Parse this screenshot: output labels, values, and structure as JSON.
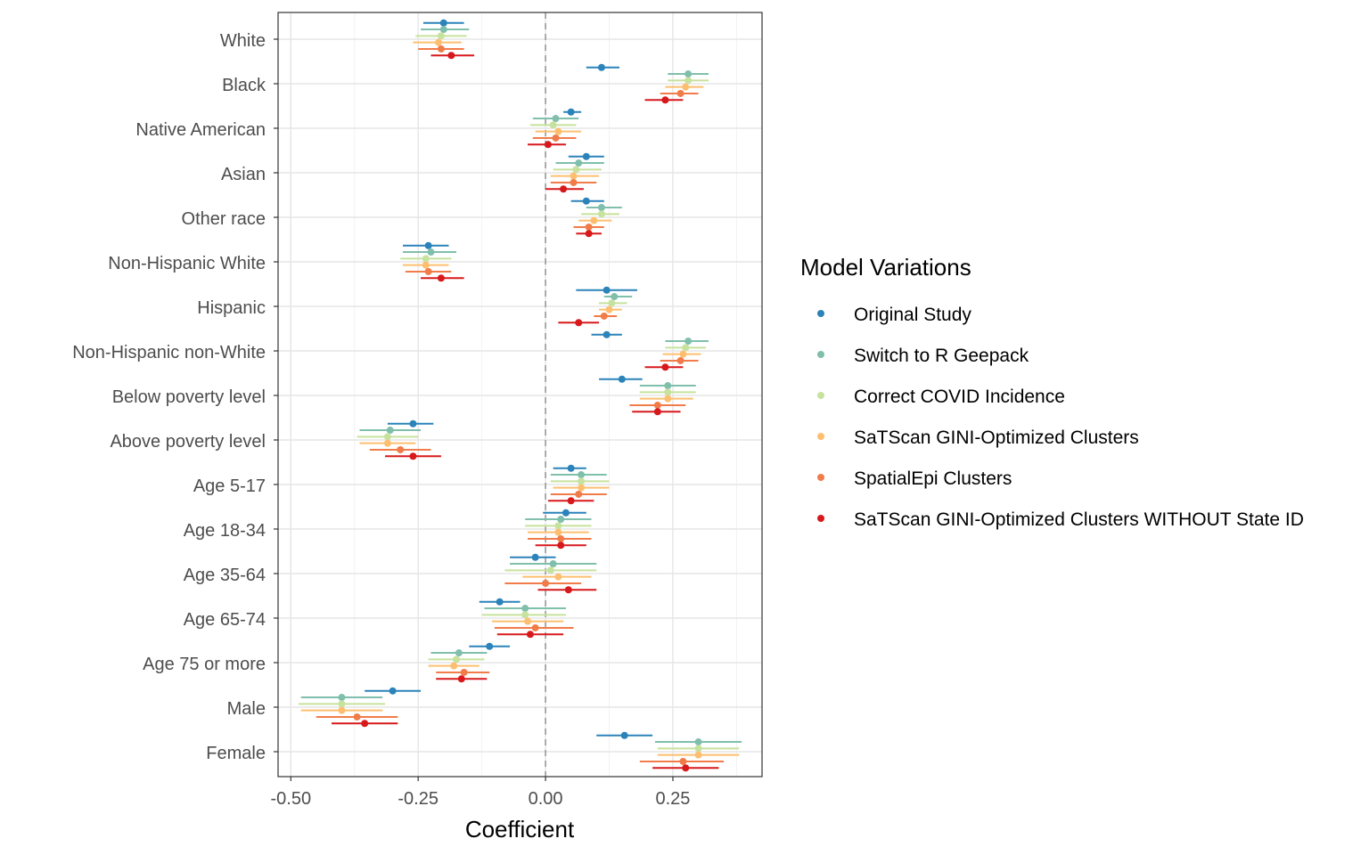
{
  "chart_data": {
    "type": "forest",
    "xlabel": "Coefficient",
    "ylabel": "",
    "xlim": [
      -0.525,
      0.425
    ],
    "xticks": [
      -0.5,
      -0.25,
      0.0,
      0.25
    ],
    "xtick_labels": [
      "-0.50",
      "-0.25",
      "0.00",
      "0.25"
    ],
    "reference_line": 0,
    "grid": true,
    "legend_position": "right",
    "legend_title": "Model Variations",
    "categories": [
      "White",
      "Black",
      "Native American",
      "Asian",
      "Other race",
      "Non-Hispanic White",
      "Hispanic",
      "Non-Hispanic non-White",
      "Below poverty level",
      "Above poverty level",
      "Age 5-17",
      "Age 18-34",
      "Age 35-64",
      "Age 65-74",
      "Age 75 or more",
      "Male",
      "Female"
    ],
    "series": [
      {
        "name": "Original Study",
        "color": "#2b83ba",
        "estimate": [
          -0.2,
          0.11,
          0.05,
          0.08,
          0.08,
          -0.23,
          0.12,
          0.12,
          0.15,
          -0.26,
          0.05,
          0.04,
          -0.02,
          -0.09,
          -0.11,
          -0.3,
          0.155
        ],
        "lower": [
          -0.24,
          0.08,
          0.035,
          0.045,
          0.05,
          -0.28,
          0.06,
          0.09,
          0.105,
          -0.31,
          0.015,
          -0.005,
          -0.07,
          -0.13,
          -0.15,
          -0.355,
          0.1
        ],
        "upper": [
          -0.16,
          0.145,
          0.07,
          0.115,
          0.115,
          -0.19,
          0.18,
          0.15,
          0.19,
          -0.22,
          0.08,
          0.08,
          0.02,
          -0.05,
          -0.07,
          -0.245,
          0.21
        ]
      },
      {
        "name": "Switch to R Geepack",
        "color": "#80bfac",
        "estimate": [
          -0.2,
          0.28,
          0.02,
          0.065,
          0.11,
          -0.225,
          0.135,
          0.28,
          0.24,
          -0.305,
          0.07,
          0.03,
          0.015,
          -0.04,
          -0.17,
          -0.4,
          0.3
        ],
        "lower": [
          -0.245,
          0.24,
          -0.025,
          0.02,
          0.08,
          -0.28,
          0.115,
          0.235,
          0.185,
          -0.365,
          0.01,
          -0.04,
          -0.07,
          -0.12,
          -0.225,
          -0.48,
          0.215
        ],
        "upper": [
          -0.15,
          0.32,
          0.065,
          0.115,
          0.15,
          -0.175,
          0.17,
          0.32,
          0.295,
          -0.245,
          0.12,
          0.09,
          0.1,
          0.04,
          -0.115,
          -0.32,
          0.385
        ]
      },
      {
        "name": "Correct COVID Incidence",
        "color": "#c7e29e",
        "estimate": [
          -0.205,
          0.28,
          0.015,
          0.06,
          0.11,
          -0.235,
          0.13,
          0.275,
          0.24,
          -0.31,
          0.07,
          0.025,
          0.01,
          -0.04,
          -0.175,
          -0.4,
          0.3
        ],
        "lower": [
          -0.255,
          0.24,
          -0.03,
          0.015,
          0.07,
          -0.285,
          0.105,
          0.235,
          0.185,
          -0.37,
          0.01,
          -0.04,
          -0.08,
          -0.125,
          -0.23,
          -0.485,
          0.22
        ],
        "upper": [
          -0.155,
          0.32,
          0.06,
          0.11,
          0.145,
          -0.185,
          0.16,
          0.315,
          0.295,
          -0.25,
          0.125,
          0.09,
          0.1,
          0.04,
          -0.12,
          -0.315,
          0.38
        ]
      },
      {
        "name": "SaTScan GINI-Optimized Clusters",
        "color": "#fdbf6f",
        "estimate": [
          -0.21,
          0.275,
          0.025,
          0.055,
          0.095,
          -0.235,
          0.125,
          0.27,
          0.24,
          -0.31,
          0.07,
          0.025,
          0.025,
          -0.035,
          -0.18,
          -0.4,
          0.3
        ],
        "lower": [
          -0.26,
          0.235,
          -0.02,
          0.01,
          0.065,
          -0.28,
          0.105,
          0.23,
          0.185,
          -0.365,
          0.015,
          -0.035,
          -0.045,
          -0.105,
          -0.23,
          -0.48,
          0.22
        ],
        "upper": [
          -0.165,
          0.31,
          0.07,
          0.105,
          0.13,
          -0.19,
          0.15,
          0.305,
          0.29,
          -0.255,
          0.125,
          0.085,
          0.09,
          0.035,
          -0.13,
          -0.32,
          0.38
        ]
      },
      {
        "name": "SpatialEpi Clusters",
        "color": "#f17c4a",
        "estimate": [
          -0.205,
          0.265,
          0.02,
          0.055,
          0.085,
          -0.23,
          0.115,
          0.265,
          0.22,
          -0.285,
          0.065,
          0.03,
          0.0,
          -0.02,
          -0.16,
          -0.37,
          0.27
        ],
        "lower": [
          -0.25,
          0.225,
          -0.025,
          0.01,
          0.055,
          -0.275,
          0.095,
          0.225,
          0.165,
          -0.345,
          0.01,
          -0.035,
          -0.08,
          -0.1,
          -0.215,
          -0.45,
          0.185
        ],
        "upper": [
          -0.16,
          0.3,
          0.06,
          0.1,
          0.115,
          -0.185,
          0.14,
          0.3,
          0.275,
          -0.225,
          0.12,
          0.09,
          0.07,
          0.055,
          -0.11,
          -0.29,
          0.35
        ]
      },
      {
        "name": "SaTScan GINI-Optimized Clusters WITHOUT State ID",
        "color": "#d7191c",
        "estimate": [
          -0.185,
          0.235,
          0.005,
          0.035,
          0.085,
          -0.205,
          0.065,
          0.235,
          0.22,
          -0.26,
          0.05,
          0.03,
          0.045,
          -0.03,
          -0.165,
          -0.355,
          0.275
        ],
        "lower": [
          -0.225,
          0.195,
          -0.035,
          0.0,
          0.06,
          -0.245,
          0.025,
          0.195,
          0.17,
          -0.315,
          0.005,
          -0.02,
          -0.015,
          -0.095,
          -0.215,
          -0.42,
          0.21
        ],
        "upper": [
          -0.14,
          0.27,
          0.04,
          0.075,
          0.11,
          -0.16,
          0.105,
          0.27,
          0.265,
          -0.205,
          0.095,
          0.08,
          0.1,
          0.035,
          -0.115,
          -0.29,
          0.34
        ]
      }
    ]
  }
}
